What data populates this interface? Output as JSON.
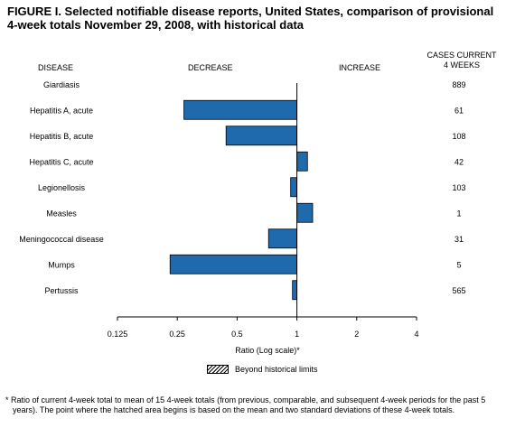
{
  "figure": {
    "title": "FIGURE I. Selected notifiable disease reports, United States, comparison of provisional 4-week totals November 29, 2008, with historical data",
    "col_disease": "DISEASE",
    "col_decrease": "DECREASE",
    "col_increase": "INCREASE",
    "col_cases_line1": "CASES CURRENT",
    "col_cases_line2": "4 WEEKS",
    "legend_label": "Beyond historical limits",
    "footnote": "* Ratio of current 4-week total to mean of 15 4-week totals (from previous, comparable, and subsequent 4-week periods for the past 5 years). The point where the hatched area begins is based on the mean and two standard deviations of these 4-week totals."
  },
  "chart_data": {
    "type": "bar",
    "orientation": "horizontal",
    "xlabel": "Ratio (Log scale)*",
    "x_scale": "log2",
    "xlim": [
      0.125,
      4
    ],
    "x_ticks": [
      "0.125",
      "0.25",
      "0.5",
      "1",
      "2",
      "4"
    ],
    "baseline": 1,
    "bar_color": "#1f6aad",
    "categories": [
      "Giardiasis",
      "Hepatitis A, acute",
      "Hepatitis B, acute",
      "Hepatitis C, acute",
      "Legionellosis",
      "Measles",
      "Meningococcal disease",
      "Mumps",
      "Pertussis"
    ],
    "values": [
      1.0,
      0.27,
      0.44,
      1.13,
      0.93,
      1.2,
      0.72,
      0.23,
      0.95
    ],
    "cases_current_4_weeks": [
      "889",
      "61",
      "108",
      "42",
      "103",
      "1",
      "31",
      "5",
      "565"
    ]
  }
}
